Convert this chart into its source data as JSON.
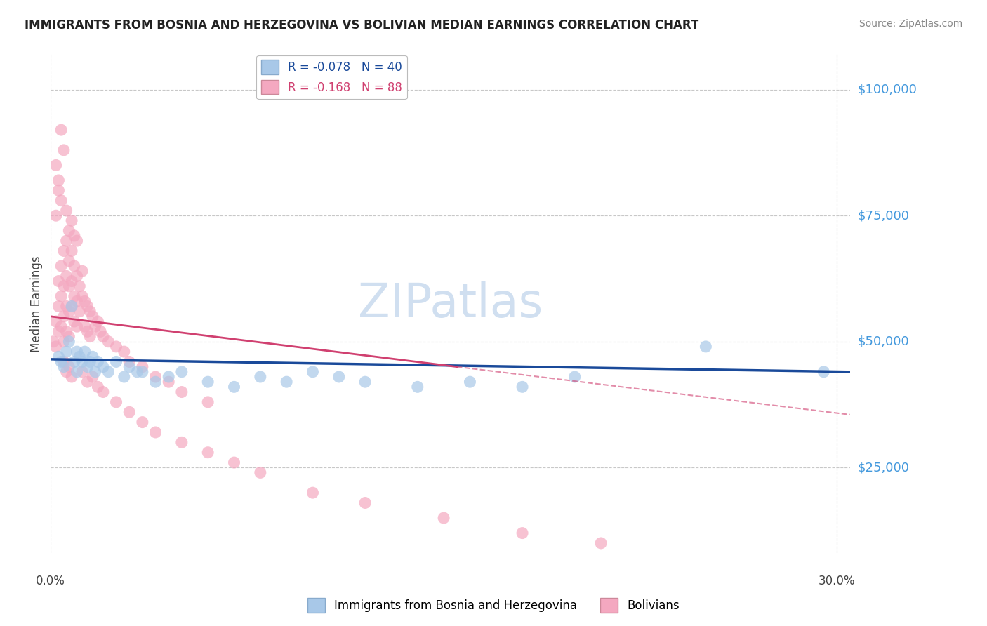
{
  "title": "IMMIGRANTS FROM BOSNIA AND HERZEGOVINA VS BOLIVIAN MEDIAN EARNINGS CORRELATION CHART",
  "source": "Source: ZipAtlas.com",
  "ylabel": "Median Earnings",
  "ytick_labels": [
    "$25,000",
    "$50,000",
    "$75,000",
    "$100,000"
  ],
  "ytick_values": [
    25000,
    50000,
    75000,
    100000
  ],
  "xlim": [
    0.0,
    0.305
  ],
  "ylim": [
    8000,
    107000
  ],
  "legend1_label": "R = -0.078   N = 40",
  "legend2_label": "R = -0.168   N = 88",
  "legend1_color": "#a8c8e8",
  "legend2_color": "#f4a8c0",
  "series1_color": "#a8c8e8",
  "series2_color": "#f4a8c0",
  "trendline1_color": "#1a4a9a",
  "trendline2_color": "#d04070",
  "watermark": "ZIPatlas",
  "watermark_color": "#d0dff0",
  "bg_color": "#ffffff",
  "grid_color": "#c8c8c8",
  "axis_label_color": "#4499dd",
  "title_color": "#222222",
  "source_color": "#888888",
  "xtick_color": "#444444",
  "blue_scatter_x": [
    0.003,
    0.004,
    0.005,
    0.006,
    0.007,
    0.008,
    0.009,
    0.01,
    0.01,
    0.011,
    0.012,
    0.013,
    0.014,
    0.015,
    0.016,
    0.017,
    0.018,
    0.02,
    0.022,
    0.025,
    0.028,
    0.03,
    0.033,
    0.035,
    0.04,
    0.045,
    0.05,
    0.06,
    0.07,
    0.08,
    0.09,
    0.1,
    0.11,
    0.12,
    0.14,
    0.16,
    0.18,
    0.2,
    0.25,
    0.295
  ],
  "blue_scatter_y": [
    47000,
    46000,
    45000,
    48000,
    50000,
    57000,
    46000,
    48000,
    44000,
    47000,
    46000,
    48000,
    45000,
    46000,
    47000,
    44000,
    46000,
    45000,
    44000,
    46000,
    43000,
    45000,
    44000,
    44000,
    42000,
    43000,
    44000,
    42000,
    41000,
    43000,
    42000,
    44000,
    43000,
    42000,
    41000,
    42000,
    41000,
    43000,
    49000,
    44000
  ],
  "pink_scatter_x": [
    0.001,
    0.002,
    0.002,
    0.003,
    0.003,
    0.003,
    0.004,
    0.004,
    0.004,
    0.005,
    0.005,
    0.005,
    0.005,
    0.006,
    0.006,
    0.006,
    0.006,
    0.007,
    0.007,
    0.007,
    0.007,
    0.008,
    0.008,
    0.008,
    0.009,
    0.009,
    0.009,
    0.01,
    0.01,
    0.01,
    0.011,
    0.011,
    0.012,
    0.012,
    0.013,
    0.013,
    0.014,
    0.014,
    0.015,
    0.015,
    0.016,
    0.017,
    0.018,
    0.019,
    0.02,
    0.022,
    0.025,
    0.028,
    0.03,
    0.035,
    0.04,
    0.045,
    0.05,
    0.06,
    0.002,
    0.003,
    0.004,
    0.004,
    0.005,
    0.006,
    0.002,
    0.003,
    0.007,
    0.008,
    0.009,
    0.01,
    0.012,
    0.014,
    0.016,
    0.018,
    0.02,
    0.025,
    0.03,
    0.035,
    0.04,
    0.05,
    0.06,
    0.07,
    0.08,
    0.1,
    0.12,
    0.15,
    0.18,
    0.21,
    0.005,
    0.006,
    0.007,
    0.008
  ],
  "pink_scatter_y": [
    50000,
    54000,
    49000,
    62000,
    57000,
    52000,
    65000,
    59000,
    53000,
    68000,
    61000,
    55000,
    50000,
    70000,
    63000,
    57000,
    52000,
    66000,
    61000,
    56000,
    51000,
    68000,
    62000,
    57000,
    65000,
    59000,
    54000,
    63000,
    58000,
    53000,
    61000,
    56000,
    64000,
    59000,
    58000,
    53000,
    57000,
    52000,
    56000,
    51000,
    55000,
    53000,
    54000,
    52000,
    51000,
    50000,
    49000,
    48000,
    46000,
    45000,
    43000,
    42000,
    40000,
    38000,
    85000,
    82000,
    92000,
    78000,
    88000,
    76000,
    75000,
    80000,
    72000,
    74000,
    71000,
    70000,
    44000,
    42000,
    43000,
    41000,
    40000,
    38000,
    36000,
    34000,
    32000,
    30000,
    28000,
    26000,
    24000,
    20000,
    18000,
    15000,
    12000,
    10000,
    46000,
    44000,
    45000,
    43000
  ],
  "trendline1_x0": 0.0,
  "trendline1_y0": 46500,
  "trendline1_x1": 0.305,
  "trendline1_y1": 44000,
  "trendline2_x0": 0.0,
  "trendline2_y0": 55000,
  "trendline2_x1": 0.155,
  "trendline2_y1": 45000,
  "trendline2_dash_x0": 0.155,
  "trendline2_dash_y0": 45000,
  "trendline2_dash_x1": 0.305,
  "trendline2_dash_y1": 35500
}
